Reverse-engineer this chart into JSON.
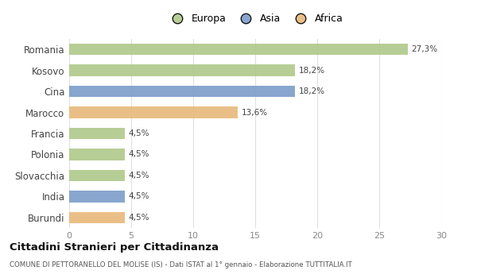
{
  "categories": [
    "Romania",
    "Kosovo",
    "Cina",
    "Marocco",
    "Francia",
    "Polonia",
    "Slovacchia",
    "India",
    "Burundi"
  ],
  "values": [
    27.3,
    18.2,
    18.2,
    13.6,
    4.5,
    4.5,
    4.5,
    4.5,
    4.5
  ],
  "labels": [
    "27,3%",
    "18,2%",
    "18,2%",
    "13,6%",
    "4,5%",
    "4,5%",
    "4,5%",
    "4,5%",
    "4,5%"
  ],
  "colors": [
    "#aec98a",
    "#aec98a",
    "#7b9dc9",
    "#e8b87a",
    "#aec98a",
    "#aec98a",
    "#aec98a",
    "#7b9dc9",
    "#e8b87a"
  ],
  "legend_labels": [
    "Europa",
    "Asia",
    "Africa"
  ],
  "legend_colors": [
    "#aec98a",
    "#7b9dc9",
    "#e8b87a"
  ],
  "xlim": [
    0,
    30
  ],
  "xticks": [
    0,
    5,
    10,
    15,
    20,
    25,
    30
  ],
  "title": "Cittadini Stranieri per Cittadinanza",
  "subtitle": "COMUNE DI PETTORANELLO DEL MOLISE (IS) - Dati ISTAT al 1° gennaio - Elaborazione TUTTITALIA.IT",
  "background_color": "#ffffff",
  "grid_color": "#e0e0e0",
  "bar_height": 0.55
}
